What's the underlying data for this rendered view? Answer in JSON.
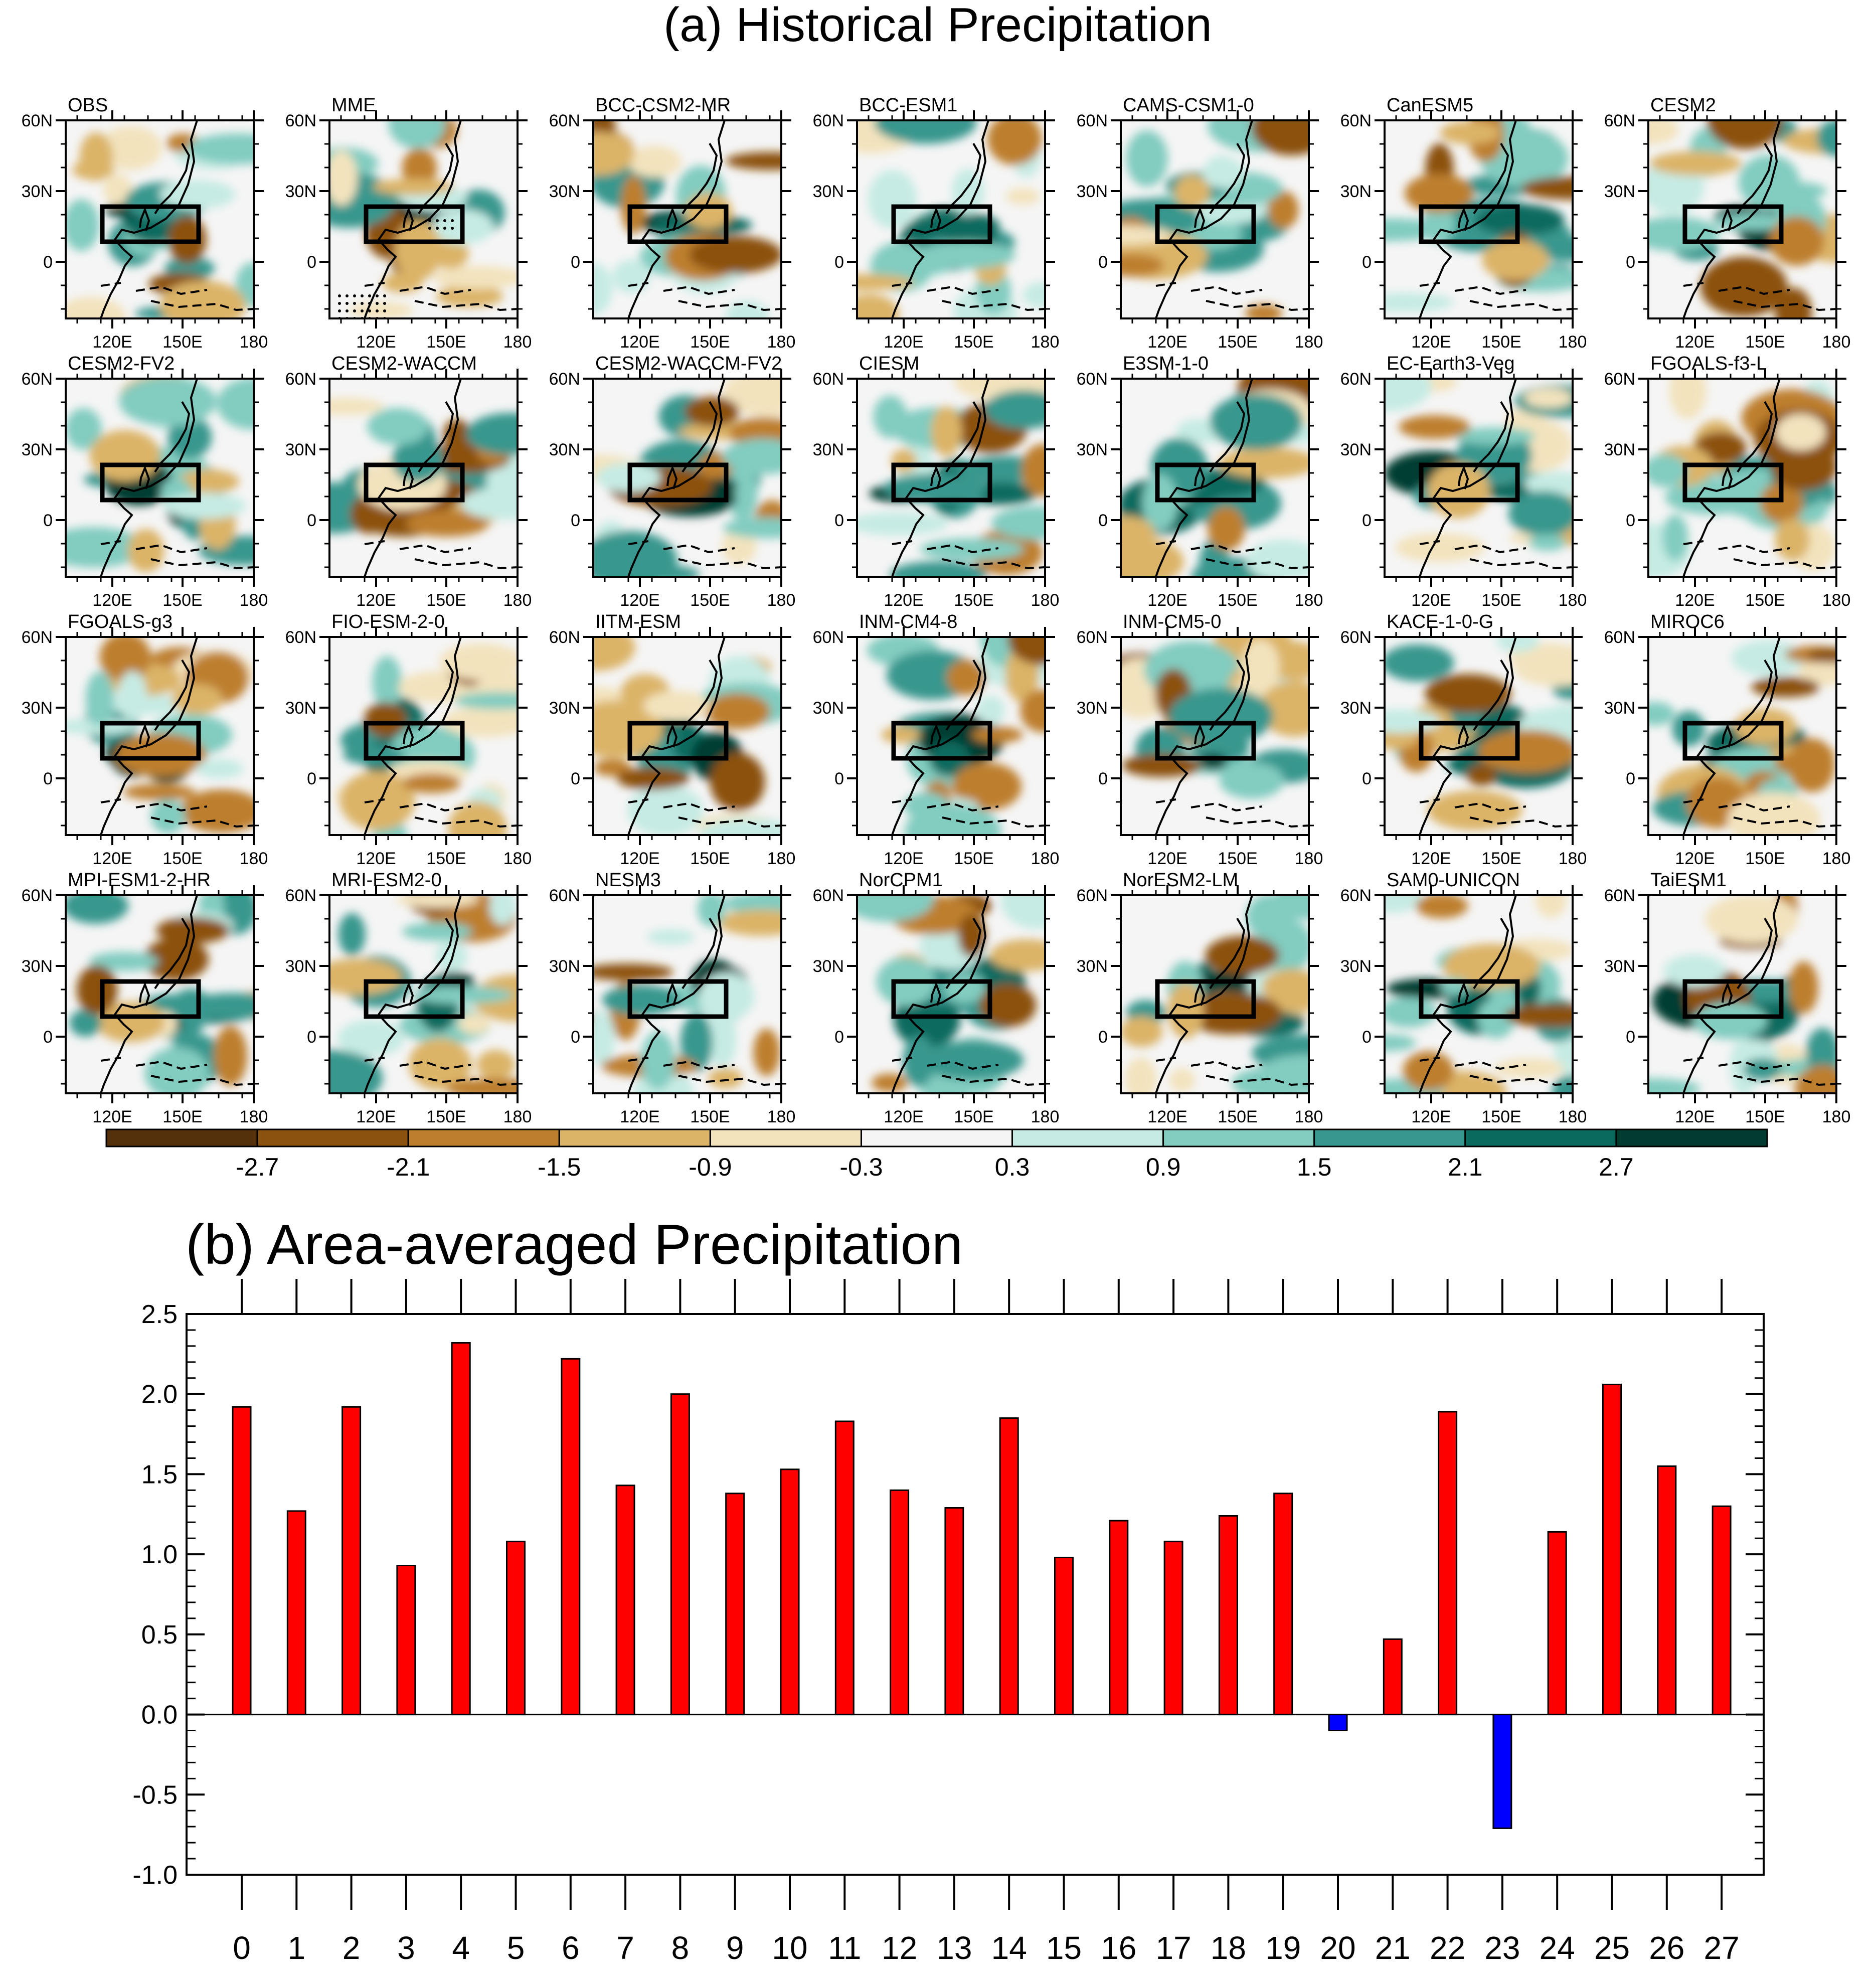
{
  "chart_data": [
    {
      "type": "heatmap",
      "title": "(a) Historical Precipitation",
      "panels": [
        "OBS",
        "MME",
        "BCC-CSM2-MR",
        "BCC-ESM1",
        "CAMS-CSM1-0",
        "CanESM5",
        "CESM2",
        "CESM2-FV2",
        "CESM2-WACCM",
        "CESM2-WACCM-FV2",
        "CIESM",
        "E3SM-1-0",
        "EC-Earth3-Veg",
        "FGOALS-f3-L",
        "FGOALS-g3",
        "FIO-ESM-2-0",
        "IITM-ESM",
        "INM-CM4-8",
        "INM-CM5-0",
        "KACE-1-0-G",
        "MIROC6",
        "MPI-ESM1-2-HR",
        "MRI-ESM2-0",
        "NESM3",
        "NorCPM1",
        "NorESM2-LM",
        "SAM0-UNICON",
        "TaiESM1"
      ],
      "lat_ticks": [
        "60N",
        "30N",
        "0"
      ],
      "lon_ticks": [
        "120E",
        "150E",
        "180"
      ],
      "colorbar_labels": [
        "-2.7",
        "-2.1",
        "-1.5",
        "-0.9",
        "-0.3",
        "0.3",
        "0.9",
        "1.5",
        "2.1",
        "2.7"
      ],
      "colorbar_colors": [
        "#54300b",
        "#8b510e",
        "#bd7f2e",
        "#dbb468",
        "#f3e3bd",
        "#f5f5f5",
        "#c6ebe4",
        "#82ccc0",
        "#38978e",
        "#0b6a5e",
        "#023c30"
      ]
    },
    {
      "type": "bar",
      "title": "(b) Area-averaged Precipitation",
      "categories": [
        "0",
        "1",
        "2",
        "3",
        "4",
        "5",
        "6",
        "7",
        "8",
        "9",
        "10",
        "11",
        "12",
        "13",
        "14",
        "15",
        "16",
        "17",
        "18",
        "19",
        "20",
        "21",
        "22",
        "23",
        "24",
        "25",
        "26",
        "27"
      ],
      "values": [
        1.92,
        1.27,
        1.92,
        0.93,
        2.32,
        1.08,
        2.22,
        1.43,
        2.0,
        1.38,
        1.53,
        1.83,
        1.4,
        1.29,
        1.85,
        0.98,
        1.21,
        1.08,
        1.24,
        1.38,
        -0.1,
        0.47,
        1.89,
        -0.71,
        1.14,
        2.06,
        1.55,
        1.3
      ],
      "ylim": [
        -1.0,
        2.5
      ],
      "yticks": [
        "2.5",
        "2.0",
        "1.5",
        "1.0",
        "0.5",
        "0.0",
        "-0.5",
        "-1.0"
      ],
      "positive_color": "#ff0000",
      "negative_color": "#0000ff"
    }
  ]
}
